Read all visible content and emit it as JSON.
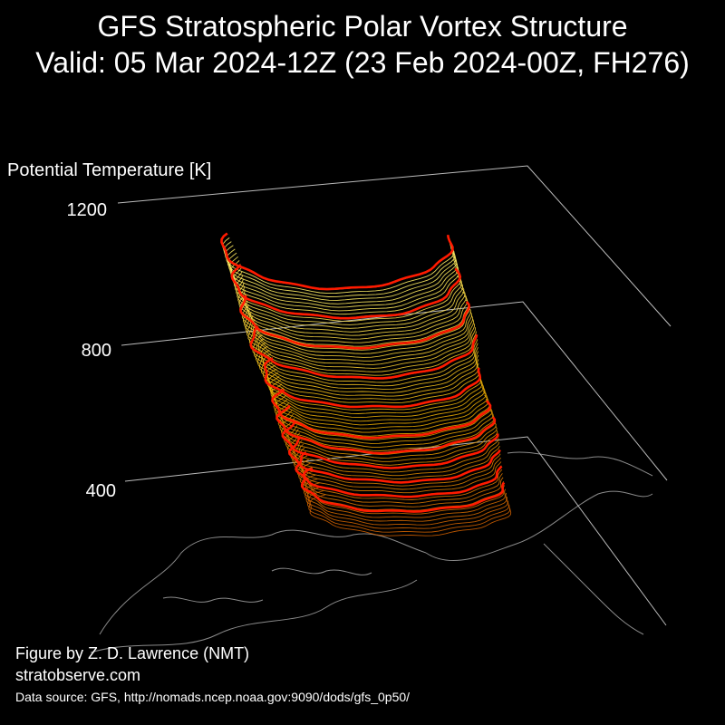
{
  "header": {
    "title_line1": "GFS Stratospheric Polar Vortex Structure",
    "title_line2": "Valid: 05 Mar 2024-12Z  (23 Feb 2024-00Z, FH276)"
  },
  "footer": {
    "credit": "Figure by Z. D. Lawrence (NMT)",
    "website": "stratobserve.com",
    "source": "Data source: GFS, http://nomads.ncep.noaa.gov:9090/dods/gfs_0p50/"
  },
  "colors": {
    "background": "#000000",
    "axis": "#bbbbbb",
    "coastline": "#8a8a8a",
    "highlight": "#ff1a00",
    "low_levels": "#cc5a00",
    "mid_levels": "#e6a800",
    "high_levels": "#fff06a"
  },
  "chart_data": {
    "type": "3d-isentropic-surface",
    "zlabel": "Potential Temperature [K]",
    "z_ticks": [
      400,
      800,
      1200
    ],
    "zlim": [
      350,
      1250
    ],
    "highlight_levels": [
      450,
      500,
      550,
      600,
      650,
      700,
      800,
      900,
      1000,
      1100,
      1200
    ],
    "grid": true
  }
}
